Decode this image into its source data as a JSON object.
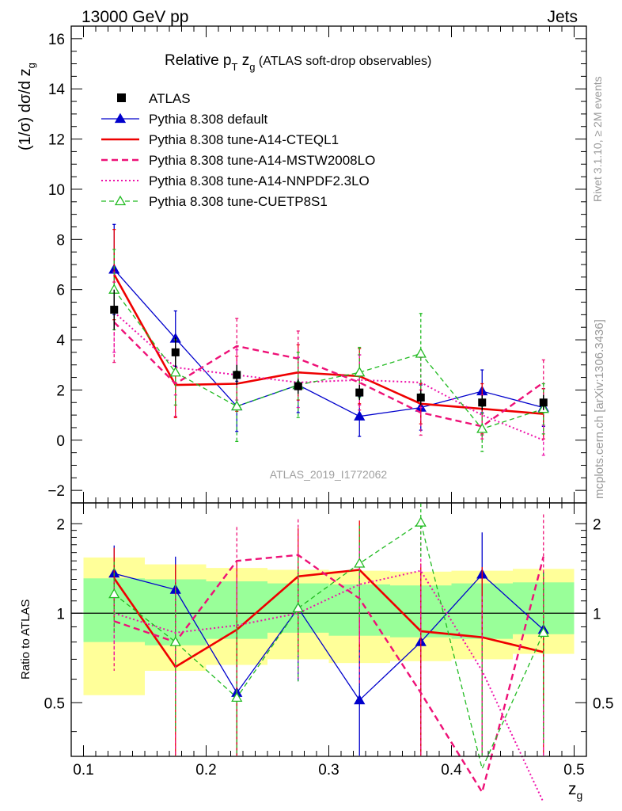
{
  "header": {
    "left": "13000 GeV pp",
    "right": "Jets"
  },
  "title": {
    "main": "Relative p",
    "sub_t": "T",
    "z": " z",
    "sub_g": "g",
    "desc": " (ATLAS soft-drop observables)"
  },
  "side": {
    "rivet": "Rivet 3.1.10, ≥ 2M events",
    "mcplots": "mcplots.cern.ch [arXiv:1306.3436]"
  },
  "watermark": "ATLAS_2019_I1772062",
  "axes": {
    "ylabel_main": "(1/σ) dσ/d z",
    "ylabel_main_sub": "g",
    "ylabel_ratio": "Ratio to ATLAS",
    "xlabel": "z",
    "xlabel_sub": "g"
  },
  "chart_data": {
    "type": "line",
    "x": [
      0.125,
      0.175,
      0.225,
      0.275,
      0.325,
      0.375,
      0.425,
      0.475
    ],
    "bin_edges": [
      0.1,
      0.15,
      0.2,
      0.25,
      0.3,
      0.35,
      0.4,
      0.45,
      0.5
    ],
    "xlim": [
      0.09,
      0.51
    ],
    "x_ticks": [
      0.1,
      0.2,
      0.3,
      0.4,
      0.5
    ],
    "main_ylim": [
      -2.5,
      16.5
    ],
    "main_y_ticks": [
      -2,
      0,
      2,
      4,
      6,
      8,
      10,
      12,
      14,
      16
    ],
    "ratio_ylim": [
      0.33,
      2.35
    ],
    "ratio_y_ticks": [
      0.5,
      1,
      2
    ],
    "ratio_log_scale": true,
    "legend_position": "top-left",
    "data": {
      "name": "ATLAS",
      "values": [
        5.2,
        3.5,
        2.6,
        2.15,
        1.9,
        1.7,
        1.5,
        1.5
      ],
      "err_up": [
        0.8,
        0.6,
        0.4,
        0.3,
        0.3,
        0.3,
        0.3,
        0.3
      ],
      "err_dn": [
        0.8,
        0.6,
        0.4,
        0.3,
        0.3,
        0.3,
        0.3,
        0.3
      ],
      "color": "#000000"
    },
    "ratio_bands": {
      "edges": [
        0.1,
        0.15,
        0.2,
        0.25,
        0.3,
        0.35,
        0.4,
        0.45,
        0.5
      ],
      "stat_up": [
        1.31,
        1.3,
        1.28,
        1.26,
        1.25,
        1.24,
        1.26,
        1.27
      ],
      "stat_dn": [
        0.8,
        0.78,
        0.82,
        0.86,
        0.84,
        0.83,
        0.82,
        0.85
      ],
      "tot_up": [
        1.54,
        1.46,
        1.42,
        1.4,
        1.39,
        1.38,
        1.39,
        1.41
      ],
      "tot_dn": [
        0.53,
        0.64,
        0.67,
        0.7,
        0.68,
        0.69,
        0.7,
        0.73
      ],
      "stat_color": "#99ff99",
      "tot_color": "#ffff99"
    },
    "series": [
      {
        "name": "Pythia 8.308 default",
        "color": "#0000cc",
        "dash": "",
        "width": 1.3,
        "marker": "triangle-filled",
        "values": [
          6.8,
          4.05,
          1.35,
          2.2,
          0.95,
          1.3,
          1.95,
          1.3
        ],
        "err": [
          1.8,
          1.1,
          1.0,
          1.1,
          0.8,
          0.9,
          0.85,
          0.75
        ],
        "ratio": [
          1.36,
          1.2,
          0.54,
          1.04,
          0.51,
          0.8,
          1.35,
          0.88
        ],
        "ratio_err_up": [
          0.33,
          0.35,
          0.4,
          0.4,
          0.5,
          0.6,
          0.52,
          0.5
        ],
        "ratio_err_dn": [
          0.3,
          0.3,
          0.4,
          0.45,
          0.5,
          0.5,
          0.5,
          0.5
        ]
      },
      {
        "name": "Pythia 8.308 tune-A14-CTEQL1",
        "color": "#ee0000",
        "dash": "",
        "width": 2.6,
        "marker": "none",
        "values": [
          6.6,
          2.2,
          2.25,
          2.7,
          2.55,
          1.45,
          1.25,
          1.05
        ],
        "err": [
          1.8,
          1.3,
          1.1,
          1.1,
          1.1,
          0.8,
          1.0,
          1.0
        ],
        "ratio": [
          1.31,
          0.66,
          0.88,
          1.33,
          1.4,
          0.87,
          0.83,
          0.74
        ],
        "ratio_err_up": [
          0.35,
          0.8,
          0.6,
          0.6,
          0.65,
          0.6,
          0.6,
          0.6
        ],
        "ratio_err_dn": [
          0.35,
          0.6,
          0.6,
          0.6,
          0.65,
          0.6,
          0.6,
          0.6
        ]
      },
      {
        "name": "Pythia 8.308 tune-A14-MSTW2008LO",
        "color": "#ee1177",
        "dash": "8,5",
        "width": 2.4,
        "marker": "none",
        "values": [
          4.7,
          2.25,
          3.75,
          3.25,
          2.3,
          1.1,
          0.55,
          2.3
        ],
        "err": [
          1.6,
          1.3,
          1.1,
          1.1,
          1.1,
          0.9,
          0.5,
          0.9
        ],
        "ratio": [
          0.94,
          0.8,
          1.5,
          1.57,
          1.12,
          0.54,
          0.25,
          1.55
        ],
        "ratio_err_up": [
          0.3,
          0.5,
          0.45,
          0.5,
          0.55,
          0.65,
          0.5,
          0.6
        ],
        "ratio_err_dn": [
          0.3,
          0.5,
          0.45,
          0.5,
          0.55,
          0.5,
          0.5,
          0.6
        ]
      },
      {
        "name": "Pythia 8.308 tune-A14-NNPDF2.3LO",
        "color": "#ee11aa",
        "dash": "2,3",
        "width": 2.0,
        "marker": "none",
        "values": [
          5.1,
          2.9,
          2.6,
          2.3,
          2.4,
          2.3,
          1.0,
          0.0
        ],
        "err": [
          1.6,
          1.1,
          1.0,
          1.0,
          1.0,
          1.0,
          0.8,
          0.6
        ],
        "ratio": [
          1.0,
          0.86,
          0.91,
          1.0,
          1.25,
          1.39,
          0.64,
          0.0
        ],
        "ratio_err_up": [
          0.3,
          0.35,
          0.4,
          0.4,
          0.45,
          0.5,
          0.5,
          0.5
        ],
        "ratio_err_dn": [
          0.3,
          0.35,
          0.4,
          0.4,
          0.45,
          0.5,
          0.5,
          0.5
        ]
      },
      {
        "name": "Pythia 8.308 tune-CUETP8S1",
        "color": "#22bb22",
        "dash": "6,4",
        "width": 1.3,
        "marker": "triangle-open",
        "values": [
          6.0,
          2.7,
          1.35,
          2.2,
          2.7,
          3.45,
          0.45,
          1.25
        ],
        "err": [
          1.6,
          1.3,
          1.4,
          1.3,
          1.0,
          1.6,
          0.9,
          1.0
        ],
        "ratio": [
          1.16,
          0.8,
          0.52,
          1.04,
          1.47,
          2.02,
          0.3,
          0.86
        ],
        "ratio_err_up": [
          0.33,
          0.45,
          0.45,
          0.5,
          0.5,
          0.6,
          0.5,
          0.5
        ],
        "ratio_err_dn": [
          0.3,
          0.4,
          0.2,
          0.45,
          0.5,
          0.5,
          0.5,
          0.5
        ]
      }
    ]
  }
}
